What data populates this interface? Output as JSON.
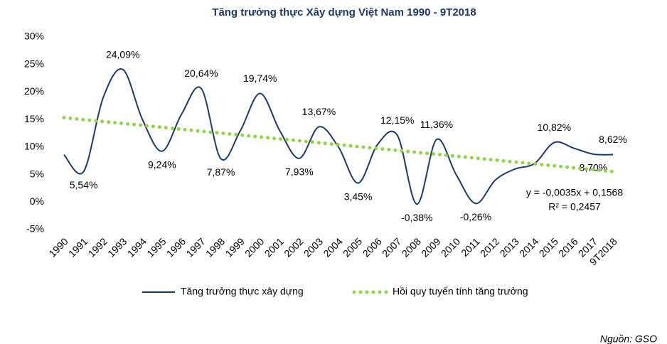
{
  "chart_data": {
    "type": "line",
    "title": "Tăng trưởng thực Xây dựng Việt Nam 1990 - 9T2018",
    "categories": [
      "1990",
      "1991",
      "1992",
      "1993",
      "1994",
      "1995",
      "1996",
      "1997",
      "1998",
      "1999",
      "2000",
      "2001",
      "2002",
      "2003",
      "2004",
      "2005",
      "2006",
      "2007",
      "2008",
      "2009",
      "2010",
      "2011",
      "2012",
      "2013",
      "2014",
      "2015",
      "2016",
      "2017",
      "9T2018"
    ],
    "series": [
      {
        "name": "Tăng trưởng thực xây dựng",
        "color": "#1f3864",
        "smooth": true,
        "values": [
          8.6,
          5.54,
          19,
          24.09,
          15,
          9.24,
          16,
          20.64,
          7.87,
          13,
          19.74,
          13,
          7.93,
          13.67,
          10,
          3.45,
          10.5,
          12.15,
          -0.38,
          11.36,
          5,
          -0.26,
          4,
          6,
          7,
          10.82,
          9.8,
          8.7,
          8.62
        ],
        "value_labels": [
          null,
          "5,54%",
          null,
          "24,09%",
          null,
          "9,24%",
          null,
          "20,64%",
          "7,87%",
          null,
          "19,74%",
          null,
          "7,93%",
          "13,67%",
          null,
          "3,45%",
          null,
          "12,15%",
          "-0,38%",
          "11,36%",
          null,
          "-0,26%",
          null,
          null,
          null,
          "10,82%",
          null,
          "8,70%",
          "8,62%"
        ]
      },
      {
        "name": "Hồi quy tuyến tính tăng trưởng",
        "color": "#92d050",
        "dotted": true,
        "values": [
          15.33,
          14.98,
          14.63,
          14.28,
          13.93,
          13.58,
          13.23,
          12.88,
          12.53,
          12.18,
          11.83,
          11.48,
          11.13,
          10.78,
          10.43,
          10.08,
          9.73,
          9.38,
          9.03,
          8.68,
          8.33,
          7.98,
          7.63,
          7.28,
          6.93,
          6.58,
          6.23,
          5.88,
          5.53
        ]
      }
    ],
    "ylim": [
      -5,
      30
    ],
    "yticks": [
      {
        "value": -5,
        "label": "-5%"
      },
      {
        "value": 0,
        "label": "0%"
      },
      {
        "value": 5,
        "label": "5%"
      },
      {
        "value": 10,
        "label": "10%"
      },
      {
        "value": 15,
        "label": "15%"
      },
      {
        "value": 20,
        "label": "20%"
      },
      {
        "value": 25,
        "label": "25%"
      },
      {
        "value": 30,
        "label": "30%"
      }
    ],
    "grid": false,
    "annotations": [
      "y = -0,0035x + 0,1568",
      "R² = 0,2457"
    ],
    "source": "Nguồn: GSO"
  }
}
